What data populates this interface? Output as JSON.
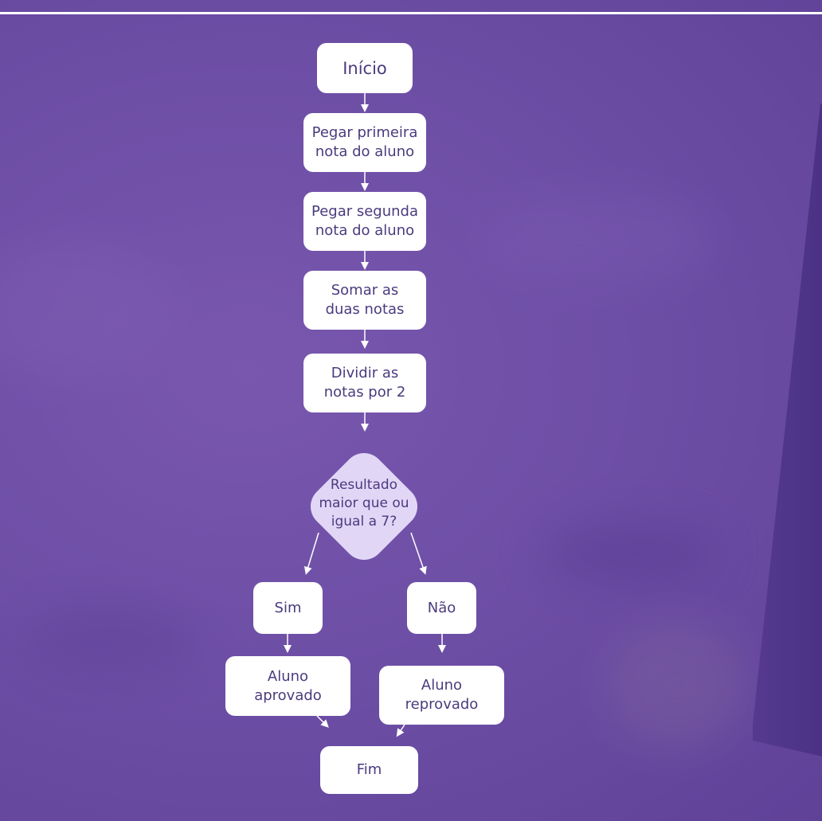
{
  "flowchart": {
    "start": "Início",
    "step1": "Pegar primeira\nnota do aluno",
    "step2": "Pegar segunda\nnota do aluno",
    "step3": "Somar as\nduas notas",
    "step4": "Dividir as\nnotas por 2",
    "decision": "Resultado\nmaior que ou\nigual a 7?",
    "yes": "Sim",
    "no": "Não",
    "approved": "Aluno\naprovado",
    "failed": "Aluno\nreprovado",
    "end": "Fim"
  },
  "colors": {
    "background": "#6e4fa6",
    "node": "#ffffff",
    "decision": "#e2d6f7",
    "text": "#4b3b7e",
    "connector": "#ffffff"
  }
}
